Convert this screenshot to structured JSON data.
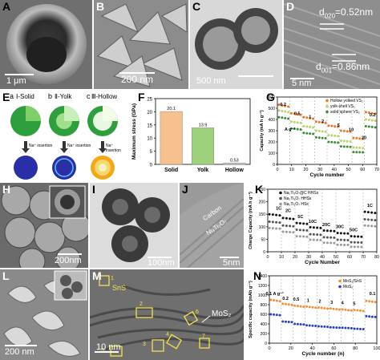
{
  "panels": {
    "A": {
      "label": "A",
      "scale": "1 μm"
    },
    "B": {
      "label": "B",
      "scale": "200 nm"
    },
    "C": {
      "label": "C",
      "scale": "500 nm"
    },
    "D": {
      "label": "D",
      "scale": "5 nm",
      "d1": "d",
      "d1_sub": "020",
      "d1_val": "=0.52nm",
      "d2": "d",
      "d2_sub": "001",
      "d2_val": "=0.86nm"
    },
    "E": {
      "label": "E",
      "columns": [
        {
          "letter": "a",
          "title": "Ⅰ-Solid"
        },
        {
          "letter": "b",
          "title": "Ⅱ-Yolk"
        },
        {
          "letter": "c",
          "title": "Ⅲ-Hollow"
        }
      ],
      "arrow_text": "Na⁺ insertion"
    },
    "H": {
      "label": "H",
      "scale": "200nm"
    },
    "I": {
      "label": "I",
      "scale": "100nm"
    },
    "J": {
      "label": "J",
      "scale": "5nm",
      "ann1": "Carbon",
      "ann2": "Ni₃Ti₂O₇"
    },
    "L": {
      "label": "L",
      "scale": "200 nm"
    },
    "M": {
      "label": "M",
      "scale": "10 nm",
      "sns": "SnS",
      "mos2": "MoS₂",
      "boxes": [
        "1",
        "2",
        "3",
        "4",
        "5",
        "6",
        "7"
      ]
    }
  },
  "chart_data": [
    {
      "id": "F",
      "label": "F",
      "type": "bar",
      "categories": [
        "Solid",
        "Yolk",
        "Hollow"
      ],
      "values": [
        20.1,
        13.9,
        0.53
      ],
      "value_labels": [
        "20.1",
        "13.9",
        "0.53"
      ],
      "ylabel": "Maximum stress (GPa)",
      "ylim": [
        0,
        25
      ],
      "yticks": [
        0,
        5,
        10,
        15,
        20,
        25
      ],
      "colors": [
        "#f7c08f",
        "#9ed27a",
        "#cfcfcf"
      ]
    },
    {
      "id": "G",
      "label": "G",
      "type": "scatter",
      "xlabel": "Cycle number",
      "ylabel": "Capacity (mA h g⁻¹)",
      "xlim": [
        0,
        70
      ],
      "ylim": [
        0,
        600
      ],
      "xticks": [
        0,
        10,
        20,
        30,
        40,
        50,
        60,
        70
      ],
      "yticks": [
        0,
        100,
        200,
        300,
        400,
        500,
        600
      ],
      "rate_labels": [
        {
          "text": "0.2",
          "x": 4,
          "y": 520
        },
        {
          "text": "0.5",
          "x": 14,
          "y": 440
        },
        {
          "text": "1",
          "x": 23,
          "y": 410
        },
        {
          "text": "2",
          "x": 32,
          "y": 370
        },
        {
          "text": "5",
          "x": 43,
          "y": 335
        },
        {
          "text": "10",
          "x": 52,
          "y": 295
        },
        {
          "text": "20",
          "x": 61,
          "y": 225
        },
        {
          "text": "0.2",
          "x": 67,
          "y": 430
        }
      ],
      "unit_note": "A g⁻¹",
      "series": [
        {
          "name": "Hollow yolked VS₂",
          "color": "#e8762a",
          "steps": [
            530,
            455,
            420,
            380,
            345,
            300,
            235,
            465
          ]
        },
        {
          "name": "yolk-shell VS₂",
          "color": "#b7d46a",
          "steps": [
            480,
            380,
            340,
            300,
            260,
            210,
            150,
            400
          ]
        },
        {
          "name": "solid sphere VS₂",
          "color": "#3d8b3d",
          "steps": [
            420,
            320,
            280,
            240,
            200,
            160,
            110,
            340
          ]
        }
      ]
    },
    {
      "id": "K",
      "label": "K",
      "type": "scatter",
      "xlabel": "Cycle Number",
      "ylabel": "Charge Capacity (mA h g⁻¹)",
      "xlim": [
        0,
        80
      ],
      "ylim": [
        0,
        250
      ],
      "xticks": [
        0,
        10,
        20,
        30,
        40,
        50,
        60,
        70,
        80
      ],
      "yticks": [
        0,
        50,
        100,
        150,
        200,
        250
      ],
      "rate_labels": [
        {
          "text": "1C",
          "x": 8,
          "y": 168
        },
        {
          "text": "2C",
          "x": 15,
          "y": 158
        },
        {
          "text": "5C",
          "x": 24,
          "y": 135
        },
        {
          "text": "10C",
          "x": 33,
          "y": 116
        },
        {
          "text": "20C",
          "x": 43,
          "y": 102
        },
        {
          "text": "30C",
          "x": 53,
          "y": 95
        },
        {
          "text": "50C",
          "x": 63,
          "y": 82
        },
        {
          "text": "1C",
          "x": 75,
          "y": 180
        }
      ],
      "series": [
        {
          "name": "Na₂Ti₃O₇@C HHSs",
          "color": "#111111",
          "steps": [
            150,
            135,
            115,
            98,
            85,
            75,
            62,
            160
          ]
        },
        {
          "name": "Na₂Ti₃O₇ HHSs",
          "color": "#555555",
          "steps": [
            120,
            105,
            88,
            70,
            58,
            48,
            38,
            130
          ]
        },
        {
          "name": "Na₂Ti₃O₇ HSs",
          "color": "#999999",
          "steps": [
            95,
            80,
            62,
            48,
            36,
            28,
            20,
            105
          ]
        }
      ]
    },
    {
      "id": "N",
      "label": "N",
      "type": "scatter",
      "xlabel": "Cycle number (n)",
      "ylabel": "Specific capacity (mAh g⁻¹)",
      "xlim": [
        0,
        100
      ],
      "ylim": [
        0,
        1400
      ],
      "xticks": [
        0,
        20,
        40,
        60,
        80,
        100
      ],
      "yticks": [
        0,
        200,
        400,
        600,
        800,
        1000,
        1200,
        1400
      ],
      "rate_labels": [
        {
          "text": "0.1 A g⁻¹",
          "x": 5,
          "y": 1000
        },
        {
          "text": "0.2",
          "x": 15,
          "y": 900
        },
        {
          "text": "0.5",
          "x": 25,
          "y": 880
        },
        {
          "text": "1",
          "x": 36,
          "y": 860
        },
        {
          "text": "2",
          "x": 47,
          "y": 840
        },
        {
          "text": "3",
          "x": 58,
          "y": 820
        },
        {
          "text": "4",
          "x": 68,
          "y": 810
        },
        {
          "text": "5",
          "x": 79,
          "y": 790
        },
        {
          "text": "0.1",
          "x": 96,
          "y": 1000
        }
      ],
      "series": [
        {
          "name": "MoS₂/SnS",
          "color": "#f0903a",
          "steps": [
            900,
            820,
            780,
            760,
            740,
            720,
            700,
            690,
            880
          ]
        },
        {
          "name": "MoS₂",
          "color": "#2f3fbf",
          "steps": [
            600,
            450,
            400,
            370,
            350,
            330,
            320,
            300,
            560
          ]
        }
      ]
    }
  ]
}
